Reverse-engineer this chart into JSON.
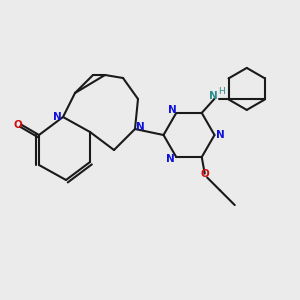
{
  "bg_color": "#ebebeb",
  "bond_color": "#1a1a1a",
  "N_color": "#1010dd",
  "O_color": "#cc1010",
  "NH_color": "#2e8b8b",
  "figsize": [
    3.0,
    3.0
  ],
  "dpi": 100,
  "xlim": [
    0,
    10
  ],
  "ylim": [
    0,
    10
  ]
}
